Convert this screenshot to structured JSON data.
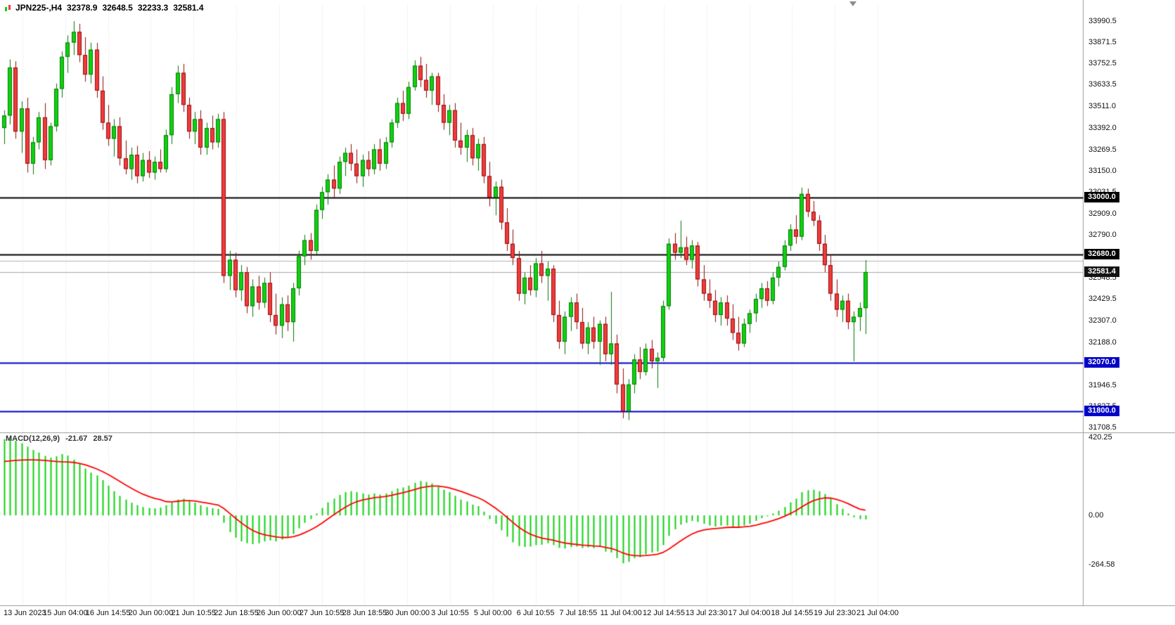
{
  "symbol_bar": {
    "symbol": "JPN225-,H4",
    "open": "32378.9",
    "high": "32648.5",
    "low": "32233.3",
    "close": "32581.4"
  },
  "colors": {
    "bull_fill": "#0FD20F",
    "bull_border": "#067806",
    "bear_fill": "#F23A3A",
    "bear_border": "#8F0E0E",
    "macd_histogram": "#0FD20F",
    "macd_signal": "#FF0000",
    "level_black": "#000000",
    "level_blue": "#0000C8",
    "bid_line": "#A8A8A8",
    "grid": "#DCDCDC",
    "separator": "#9C9C9C",
    "current_price_badge_bg": "#141414"
  },
  "chart_data": {
    "type": "candlestick",
    "title": "JPN225-,H4",
    "timeframe": "H4",
    "grid": "vertical-dotted",
    "legend_position": "none",
    "price_axis": {
      "min": 31708.5,
      "max": 33990.5,
      "ticks": [
        "33990.5",
        "33871.5",
        "33752.5",
        "33633.5",
        "33511.0",
        "33392.0",
        "33269.5",
        "33150.0",
        "33031.5",
        "32909.0",
        "32790.0",
        "32548.5",
        "32429.5",
        "32307.0",
        "32188.0",
        "31946.5",
        "31827.5",
        "31708.5"
      ]
    },
    "time_labels": [
      "13 Jun 2023",
      "15 Jun 04:00",
      "16 Jun 14:55",
      "20 Jun 00:00",
      "21 Jun 10:55",
      "22 Jun 18:55",
      "26 Jun 00:00",
      "27 Jun 10:55",
      "28 Jun 18:55",
      "30 Jun 00:00",
      "3 Jul 10:55",
      "5 Jul 00:00",
      "6 Jul 10:55",
      "7 Jul 18:55",
      "11 Jul 04:00",
      "12 Jul 14:55",
      "13 Jul 23:30",
      "17 Jul 04:00",
      "18 Jul 14:55",
      "19 Jul 23:30",
      "21 Jul 04:00"
    ],
    "candles": [
      [
        33390,
        33490,
        33300,
        33460
      ],
      [
        33460,
        33775,
        33410,
        33730
      ],
      [
        33730,
        33765,
        33330,
        33370
      ],
      [
        33370,
        33540,
        33250,
        33500
      ],
      [
        33500,
        33560,
        33140,
        33190
      ],
      [
        33190,
        33340,
        33130,
        33310
      ],
      [
        33310,
        33480,
        33270,
        33450
      ],
      [
        33450,
        33530,
        33160,
        33210
      ],
      [
        33210,
        33420,
        33180,
        33400
      ],
      [
        33400,
        33640,
        33370,
        33610
      ],
      [
        33610,
        33820,
        33560,
        33790
      ],
      [
        33790,
        33910,
        33700,
        33870
      ],
      [
        33870,
        33990,
        33800,
        33930
      ],
      [
        33930,
        33975,
        33760,
        33800
      ],
      [
        33800,
        33900,
        33650,
        33690
      ],
      [
        33690,
        33870,
        33640,
        33830
      ],
      [
        33830,
        33868,
        33560,
        33600
      ],
      [
        33600,
        33680,
        33380,
        33420
      ],
      [
        33420,
        33520,
        33290,
        33330
      ],
      [
        33330,
        33440,
        33230,
        33400
      ],
      [
        33400,
        33450,
        33180,
        33220
      ],
      [
        33220,
        33320,
        33130,
        33160
      ],
      [
        33160,
        33280,
        33100,
        33240
      ],
      [
        33240,
        33290,
        33080,
        33120
      ],
      [
        33120,
        33250,
        33090,
        33210
      ],
      [
        33210,
        33260,
        33110,
        33140
      ],
      [
        33140,
        33230,
        33100,
        33200
      ],
      [
        33200,
        33270,
        33140,
        33160
      ],
      [
        33160,
        33380,
        33140,
        33350
      ],
      [
        33350,
        33620,
        33300,
        33580
      ],
      [
        33580,
        33740,
        33530,
        33700
      ],
      [
        33700,
        33750,
        33480,
        33520
      ],
      [
        33520,
        33560,
        33330,
        33370
      ],
      [
        33370,
        33480,
        33300,
        33440
      ],
      [
        33440,
        33490,
        33240,
        33280
      ],
      [
        33280,
        33420,
        33240,
        33390
      ],
      [
        33390,
        33460,
        33270,
        33310
      ],
      [
        33310,
        33470,
        33280,
        33440
      ],
      [
        33440,
        33480,
        32520,
        32560
      ],
      [
        32560,
        32700,
        32480,
        32650
      ],
      [
        32650,
        32690,
        32440,
        32480
      ],
      [
        32480,
        32620,
        32420,
        32580
      ],
      [
        32580,
        32610,
        32350,
        32390
      ],
      [
        32390,
        32540,
        32330,
        32500
      ],
      [
        32500,
        32560,
        32370,
        32410
      ],
      [
        32410,
        32550,
        32380,
        32520
      ],
      [
        32520,
        32580,
        32300,
        32340
      ],
      [
        32340,
        32460,
        32230,
        32280
      ],
      [
        32280,
        32440,
        32210,
        32400
      ],
      [
        32400,
        32450,
        32250,
        32300
      ],
      [
        32300,
        32520,
        32190,
        32490
      ],
      [
        32490,
        32700,
        32450,
        32670
      ],
      [
        32670,
        32790,
        32620,
        32760
      ],
      [
        32760,
        32800,
        32650,
        32700
      ],
      [
        32700,
        32960,
        32680,
        32930
      ],
      [
        32930,
        33060,
        32880,
        33030
      ],
      [
        33030,
        33130,
        32960,
        33100
      ],
      [
        33100,
        33180,
        33000,
        33050
      ],
      [
        33050,
        33230,
        33020,
        33200
      ],
      [
        33200,
        33280,
        33120,
        33250
      ],
      [
        33250,
        33300,
        33150,
        33190
      ],
      [
        33190,
        33270,
        33080,
        33120
      ],
      [
        33120,
        33240,
        33060,
        33210
      ],
      [
        33210,
        33260,
        33120,
        33160
      ],
      [
        33160,
        33300,
        33130,
        33270
      ],
      [
        33270,
        33330,
        33150,
        33190
      ],
      [
        33190,
        33340,
        33160,
        33310
      ],
      [
        33310,
        33440,
        33280,
        33420
      ],
      [
        33420,
        33560,
        33390,
        33530
      ],
      [
        33530,
        33600,
        33430,
        33470
      ],
      [
        33470,
        33650,
        33440,
        33620
      ],
      [
        33620,
        33770,
        33600,
        33740
      ],
      [
        33740,
        33790,
        33620,
        33660
      ],
      [
        33660,
        33750,
        33560,
        33600
      ],
      [
        33600,
        33700,
        33520,
        33680
      ],
      [
        33680,
        33700,
        33480,
        33520
      ],
      [
        33520,
        33580,
        33380,
        33420
      ],
      [
        33420,
        33520,
        33350,
        33490
      ],
      [
        33490,
        33530,
        33280,
        33320
      ],
      [
        33320,
        33420,
        33240,
        33280
      ],
      [
        33280,
        33380,
        33200,
        33350
      ],
      [
        33350,
        33390,
        33180,
        33220
      ],
      [
        33220,
        33330,
        33150,
        33300
      ],
      [
        33300,
        33340,
        33080,
        33120
      ],
      [
        33120,
        33200,
        32950,
        33000
      ],
      [
        33000,
        33090,
        32900,
        33060
      ],
      [
        33060,
        33100,
        32820,
        32860
      ],
      [
        32860,
        32940,
        32700,
        32740
      ],
      [
        32740,
        32820,
        32620,
        32660
      ],
      [
        32660,
        32700,
        32420,
        32460
      ],
      [
        32460,
        32580,
        32400,
        32550
      ],
      [
        32550,
        32620,
        32450,
        32480
      ],
      [
        32480,
        32660,
        32440,
        32630
      ],
      [
        32630,
        32700,
        32520,
        32560
      ],
      [
        32560,
        32640,
        32420,
        32600
      ],
      [
        32600,
        32620,
        32300,
        32340
      ],
      [
        32340,
        32420,
        32150,
        32190
      ],
      [
        32190,
        32360,
        32120,
        32330
      ],
      [
        32330,
        32440,
        32250,
        32410
      ],
      [
        32410,
        32460,
        32260,
        32300
      ],
      [
        32300,
        32380,
        32150,
        32180
      ],
      [
        32180,
        32300,
        32120,
        32270
      ],
      [
        32270,
        32330,
        32150,
        32190
      ],
      [
        32190,
        32310,
        32060,
        32290
      ],
      [
        32290,
        32330,
        32080,
        32120
      ],
      [
        32120,
        32470,
        32060,
        32180
      ],
      [
        32180,
        32230,
        31900,
        31950
      ],
      [
        31950,
        32040,
        31760,
        31800
      ],
      [
        31800,
        31980,
        31750,
        31950
      ],
      [
        31950,
        32120,
        31900,
        32090
      ],
      [
        32090,
        32160,
        31980,
        32020
      ],
      [
        32020,
        32180,
        32000,
        32150
      ],
      [
        32150,
        32200,
        32040,
        32080
      ],
      [
        32080,
        32130,
        31930,
        32100
      ],
      [
        32100,
        32420,
        32080,
        32390
      ],
      [
        32390,
        32770,
        32370,
        32740
      ],
      [
        32740,
        32800,
        32650,
        32690
      ],
      [
        32690,
        32870,
        32660,
        32720
      ],
      [
        32720,
        32780,
        32620,
        32650
      ],
      [
        32650,
        32760,
        32600,
        32730
      ],
      [
        32730,
        32750,
        32500,
        32540
      ],
      [
        32540,
        32620,
        32420,
        32460
      ],
      [
        32460,
        32540,
        32380,
        32420
      ],
      [
        32420,
        32480,
        32300,
        32340
      ],
      [
        32340,
        32440,
        32280,
        32410
      ],
      [
        32410,
        32450,
        32280,
        32320
      ],
      [
        32320,
        32400,
        32200,
        32240
      ],
      [
        32240,
        32330,
        32140,
        32180
      ],
      [
        32180,
        32320,
        32160,
        32290
      ],
      [
        32290,
        32370,
        32240,
        32350
      ],
      [
        32350,
        32460,
        32300,
        32430
      ],
      [
        32430,
        32520,
        32380,
        32490
      ],
      [
        32490,
        32530,
        32390,
        32420
      ],
      [
        32420,
        32580,
        32400,
        32550
      ],
      [
        32550,
        32640,
        32500,
        32610
      ],
      [
        32610,
        32760,
        32590,
        32730
      ],
      [
        32730,
        32850,
        32700,
        32820
      ],
      [
        32820,
        32900,
        32740,
        32780
      ],
      [
        32780,
        33055,
        32760,
        33020
      ],
      [
        33020,
        33050,
        32890,
        32920
      ],
      [
        32920,
        32980,
        32840,
        32870
      ],
      [
        32870,
        32900,
        32700,
        32740
      ],
      [
        32740,
        32790,
        32580,
        32620
      ],
      [
        32620,
        32680,
        32420,
        32460
      ],
      [
        32460,
        32540,
        32330,
        32370
      ],
      [
        32370,
        32450,
        32300,
        32420
      ],
      [
        32420,
        32460,
        32260,
        32300
      ],
      [
        32300,
        32360,
        32080,
        32330
      ],
      [
        32330,
        32410,
        32250,
        32378.9
      ],
      [
        32378.9,
        32648.5,
        32233.3,
        32581.4
      ]
    ],
    "levels": [
      {
        "price": 33000.0,
        "label": "33000.0",
        "color": "#000000"
      },
      {
        "price": 32680.0,
        "label": "32680.0",
        "color": "#000000"
      },
      {
        "price": 32645.0,
        "label": "",
        "color": "#B4B4B4"
      },
      {
        "price": 32070.0,
        "label": "32070.0",
        "color": "#0000C8"
      },
      {
        "price": 31800.0,
        "label": "31800.0",
        "color": "#0000C8"
      }
    ],
    "current_price": {
      "value": 32581.4,
      "label": "32581.4"
    },
    "macd": {
      "label": "MACD(12,26,9)",
      "value": "-21.67",
      "signal_value": "28.57",
      "range": {
        "max": 420.25,
        "min": -264.58
      },
      "axis_ticks": [
        "420.25",
        "0.00",
        "-264.58"
      ],
      "histogram": [
        410,
        418,
        402,
        388,
        370,
        352,
        338,
        320,
        310,
        318,
        330,
        322,
        300,
        278,
        252,
        230,
        215,
        190,
        160,
        130,
        105,
        85,
        68,
        55,
        45,
        40,
        38,
        42,
        55,
        70,
        85,
        90,
        80,
        68,
        55,
        45,
        38,
        35,
        -40,
        -90,
        -120,
        -140,
        -150,
        -155,
        -150,
        -140,
        -135,
        -140,
        -130,
        -120,
        -100,
        -70,
        -40,
        -20,
        10,
        40,
        70,
        90,
        110,
        125,
        130,
        125,
        118,
        112,
        118,
        112,
        118,
        130,
        145,
        150,
        160,
        175,
        185,
        180,
        172,
        158,
        138,
        125,
        105,
        85,
        75,
        58,
        50,
        20,
        -20,
        -45,
        -80,
        -115,
        -145,
        -165,
        -170,
        -168,
        -160,
        -158,
        -150,
        -160,
        -175,
        -178,
        -170,
        -168,
        -175,
        -172,
        -176,
        -170,
        -195,
        -200,
        -230,
        -258,
        -250,
        -230,
        -225,
        -210,
        -200,
        -195,
        -160,
        -110,
        -75,
        -50,
        -40,
        -30,
        -35,
        -45,
        -55,
        -60,
        -55,
        -55,
        -60,
        -65,
        -55,
        -45,
        -30,
        -15,
        -5,
        10,
        25,
        45,
        70,
        90,
        125,
        135,
        138,
        130,
        115,
        90,
        60,
        35,
        10,
        -10,
        -20,
        -21.67
      ],
      "signal": [
        290,
        293,
        296,
        298,
        299,
        299,
        298,
        296,
        293,
        290,
        288,
        287,
        285,
        280,
        272,
        262,
        250,
        236,
        220,
        202,
        183,
        164,
        146,
        129,
        114,
        102,
        92,
        85,
        74,
        73,
        76,
        79,
        79,
        77,
        72,
        67,
        61,
        56,
        37,
        11,
        -15,
        -40,
        -62,
        -81,
        -95,
        -104,
        -110,
        -116,
        -119,
        -119,
        -115,
        -106,
        -93,
        -78,
        -61,
        -41,
        -19,
        3,
        24,
        44,
        61,
        74,
        83,
        89,
        95,
        98,
        102,
        108,
        115,
        122,
        130,
        139,
        148,
        154,
        158,
        158,
        154,
        148,
        139,
        129,
        118,
        106,
        95,
        80,
        60,
        39,
        15,
        -11,
        -38,
        -63,
        -84,
        -101,
        -113,
        -122,
        -128,
        -134,
        -142,
        -149,
        -153,
        -156,
        -160,
        -162,
        -165,
        -166,
        -172,
        -178,
        -188,
        -202,
        -212,
        -216,
        -218,
        -216,
        -213,
        -209,
        -199,
        -181,
        -160,
        -138,
        -118,
        -100,
        -87,
        -79,
        -74,
        -71,
        -68,
        -65,
        -64,
        -64,
        -62,
        -59,
        -53,
        -45,
        -37,
        -28,
        -17,
        -5,
        10,
        26,
        46,
        64,
        79,
        89,
        94,
        93,
        86,
        76,
        63,
        48,
        34,
        28.57
      ]
    }
  }
}
